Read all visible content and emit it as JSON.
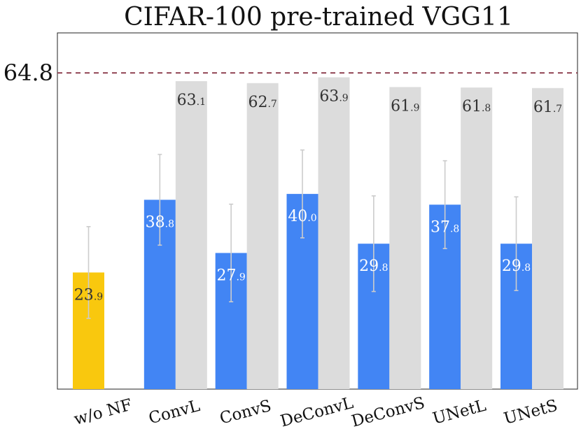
{
  "chart_data": {
    "type": "bar",
    "title": "CIFAR-100 pre-trained VGG11",
    "xlabel": "",
    "ylabel": "",
    "ylim": [
      0,
      73
    ],
    "categories": [
      "w/o NF",
      "ConvL",
      "ConvS",
      "DeConvL",
      "DeConvS",
      "UNetL",
      "UNetS"
    ],
    "reference_line": {
      "value": 64.8,
      "label": "64.8",
      "style": "dashed",
      "color": "#8b3a4a"
    },
    "series": [
      {
        "name": "primary",
        "values": [
          23.9,
          38.8,
          27.9,
          40.0,
          29.8,
          37.8,
          29.8
        ],
        "labels": [
          {
            "main": "23",
            "dec": ".9"
          },
          {
            "main": "38",
            "dec": ".8"
          },
          {
            "main": "27",
            "dec": ".9"
          },
          {
            "main": "40",
            "dec": ".0"
          },
          {
            "main": "29",
            "dec": ".8"
          },
          {
            "main": "37",
            "dec": ".8"
          },
          {
            "main": "29",
            "dec": ".8"
          }
        ],
        "error": [
          9.4,
          9.3,
          10.0,
          9.0,
          9.8,
          9.0,
          9.6
        ],
        "colors": [
          "#f9c80e",
          "#4285f4",
          "#4285f4",
          "#4285f4",
          "#4285f4",
          "#4285f4",
          "#4285f4"
        ],
        "label_colors": [
          "#333333",
          "#ffffff",
          "#ffffff",
          "#ffffff",
          "#ffffff",
          "#ffffff",
          "#ffffff"
        ]
      },
      {
        "name": "reference",
        "values": [
          null,
          63.1,
          62.7,
          63.9,
          61.9,
          61.8,
          61.7
        ],
        "labels": [
          null,
          {
            "main": "63",
            "dec": ".1"
          },
          {
            "main": "62",
            "dec": ".7"
          },
          {
            "main": "63",
            "dec": ".9"
          },
          {
            "main": "61",
            "dec": ".9"
          },
          {
            "main": "61",
            "dec": ".8"
          },
          {
            "main": "61",
            "dec": ".7"
          }
        ],
        "colors": [
          "#dcdcdc"
        ],
        "label_colors": [
          "#333333"
        ]
      }
    ],
    "error_bar_color": "#cccccc",
    "grid": false,
    "legend": "none"
  }
}
